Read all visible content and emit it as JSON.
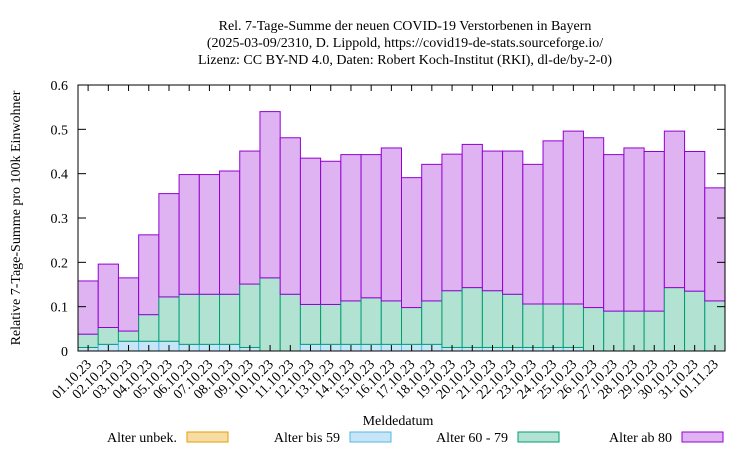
{
  "chart_data": {
    "type": "bar",
    "stacked": true,
    "title_lines": [
      "Rel. 7-Tage-Summe der neuen COVID-19 Verstorbenen in Bayern",
      "(2025-03-09/2310, D. Lippold, https://covid19-de-stats.sourceforge.io/",
      "Lizenz: CC BY-ND 4.0, Daten: Robert Koch-Institut (RKI), dl-de/by-2-0)"
    ],
    "xlabel": "Meldedatum",
    "ylabel": "Relative 7-Tage-Summe pro 100k Einwohner",
    "ylim": [
      0,
      0.6
    ],
    "yticks": [
      "0",
      "0.1",
      "0.2",
      "0.3",
      "0.4",
      "0.5",
      "0.6"
    ],
    "grid": false,
    "legend_position": "bottom",
    "categories": [
      "01.10.23",
      "02.10.23",
      "03.10.23",
      "04.10.23",
      "05.10.23",
      "06.10.23",
      "07.10.23",
      "08.10.23",
      "09.10.23",
      "10.10.23",
      "11.10.23",
      "12.10.23",
      "13.10.23",
      "14.10.23",
      "15.10.23",
      "16.10.23",
      "17.10.23",
      "18.10.23",
      "19.10.23",
      "20.10.23",
      "21.10.23",
      "22.10.23",
      "23.10.23",
      "24.10.23",
      "25.10.23",
      "26.10.23",
      "27.10.23",
      "28.10.23",
      "29.10.23",
      "30.10.23",
      "31.10.23",
      "01.11.23"
    ],
    "series": [
      {
        "name": "Alter unbek.",
        "fill": "#f7dca4",
        "stroke": "#e69f00",
        "values": [
          0,
          0,
          0,
          0,
          0,
          0,
          0,
          0,
          0,
          0,
          0,
          0,
          0,
          0,
          0,
          0,
          0,
          0,
          0,
          0,
          0,
          0,
          0,
          0,
          0,
          0,
          0,
          0,
          0,
          0,
          0,
          0
        ]
      },
      {
        "name": "Alter bis 59",
        "fill": "#c6e6f7",
        "stroke": "#56b4e9",
        "values": [
          0.008,
          0.015,
          0.022,
          0.022,
          0.022,
          0.015,
          0.015,
          0.015,
          0.008,
          0,
          0,
          0.015,
          0.015,
          0.015,
          0.015,
          0.015,
          0.015,
          0.015,
          0.008,
          0.008,
          0.008,
          0.008,
          0.008,
          0.008,
          0.008,
          0,
          0,
          0,
          0,
          0,
          0,
          0
        ]
      },
      {
        "name": "Alter 60 - 79",
        "fill": "#b2e3d2",
        "stroke": "#009e73",
        "values": [
          0.03,
          0.038,
          0.023,
          0.06,
          0.1,
          0.113,
          0.113,
          0.113,
          0.143,
          0.165,
          0.128,
          0.09,
          0.09,
          0.098,
          0.105,
          0.098,
          0.083,
          0.098,
          0.128,
          0.135,
          0.128,
          0.12,
          0.098,
          0.098,
          0.098,
          0.098,
          0.09,
          0.09,
          0.09,
          0.143,
          0.135,
          0.113
        ]
      },
      {
        "name": "Alter ab 80",
        "fill": "#dfb3f2",
        "stroke": "#9400d3",
        "values": [
          0.12,
          0.143,
          0.12,
          0.18,
          0.233,
          0.27,
          0.27,
          0.278,
          0.3,
          0.375,
          0.353,
          0.33,
          0.323,
          0.33,
          0.323,
          0.345,
          0.293,
          0.308,
          0.308,
          0.323,
          0.315,
          0.323,
          0.315,
          0.368,
          0.39,
          0.383,
          0.353,
          0.368,
          0.36,
          0.353,
          0.315,
          0.255
        ]
      }
    ]
  }
}
